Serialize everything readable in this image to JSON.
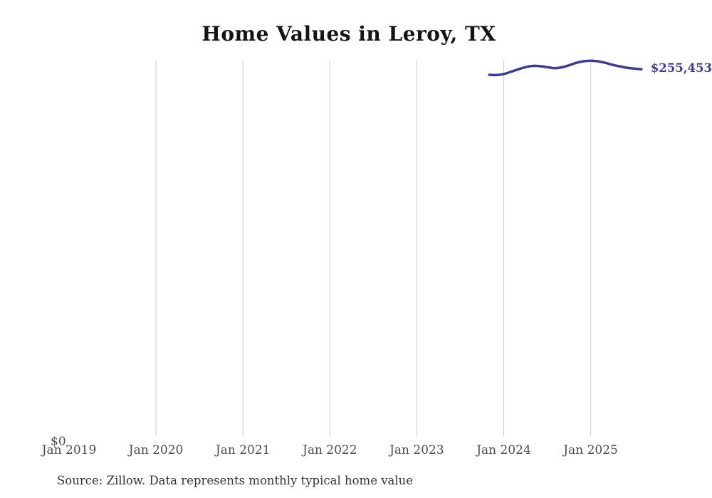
{
  "title": "Home Values in Leroy, TX",
  "labels": {
    "y_zero": "$0",
    "latest_value": "$255,453",
    "source_note": "Source: Zillow. Data represents monthly typical home value"
  },
  "colors": {
    "line": "#3c3c94",
    "latest_value_label": "#3c3c94",
    "gridline": "#cccccc",
    "title": "#141414",
    "axis_label": "#4d4d4d",
    "source_note": "#333333",
    "background": "#ffffff"
  },
  "chart_data": {
    "type": "line",
    "title": "Home Values in Leroy, TX",
    "xlabel": "",
    "ylabel": "",
    "ylim": [
      0,
      262000
    ],
    "grid": "vertical-only",
    "legend": "none",
    "x_ticks": [
      {
        "label": "Jan 2019",
        "month": "2019-01",
        "gridline": false
      },
      {
        "label": "Jan 2020",
        "month": "2020-01",
        "gridline": true
      },
      {
        "label": "Jan 2021",
        "month": "2021-01",
        "gridline": true
      },
      {
        "label": "Jan 2022",
        "month": "2022-01",
        "gridline": true
      },
      {
        "label": "Jan 2023",
        "month": "2023-01",
        "gridline": true
      },
      {
        "label": "Jan 2024",
        "month": "2024-01",
        "gridline": true
      },
      {
        "label": "Jan 2025",
        "month": "2025-01",
        "gridline": true
      }
    ],
    "series": [
      {
        "name": "Monthly typical home value",
        "points": [
          {
            "month": "2023-11",
            "value": 251600
          },
          {
            "month": "2023-12",
            "value": 251400
          },
          {
            "month": "2024-01",
            "value": 252100
          },
          {
            "month": "2024-02",
            "value": 253700
          },
          {
            "month": "2024-03",
            "value": 255400
          },
          {
            "month": "2024-04",
            "value": 256900
          },
          {
            "month": "2024-05",
            "value": 257800
          },
          {
            "month": "2024-06",
            "value": 257600
          },
          {
            "month": "2024-07",
            "value": 256900
          },
          {
            "month": "2024-08",
            "value": 256200
          },
          {
            "month": "2024-09",
            "value": 256800
          },
          {
            "month": "2024-10",
            "value": 258200
          },
          {
            "month": "2024-11",
            "value": 259900
          },
          {
            "month": "2024-12",
            "value": 261000
          },
          {
            "month": "2025-01",
            "value": 261400
          },
          {
            "month": "2025-02",
            "value": 261000
          },
          {
            "month": "2025-03",
            "value": 259900
          },
          {
            "month": "2025-04",
            "value": 258600
          },
          {
            "month": "2025-05",
            "value": 257500
          },
          {
            "month": "2025-06",
            "value": 256500
          },
          {
            "month": "2025-07",
            "value": 255900
          },
          {
            "month": "2025-08",
            "value": 255453
          }
        ]
      }
    ]
  }
}
